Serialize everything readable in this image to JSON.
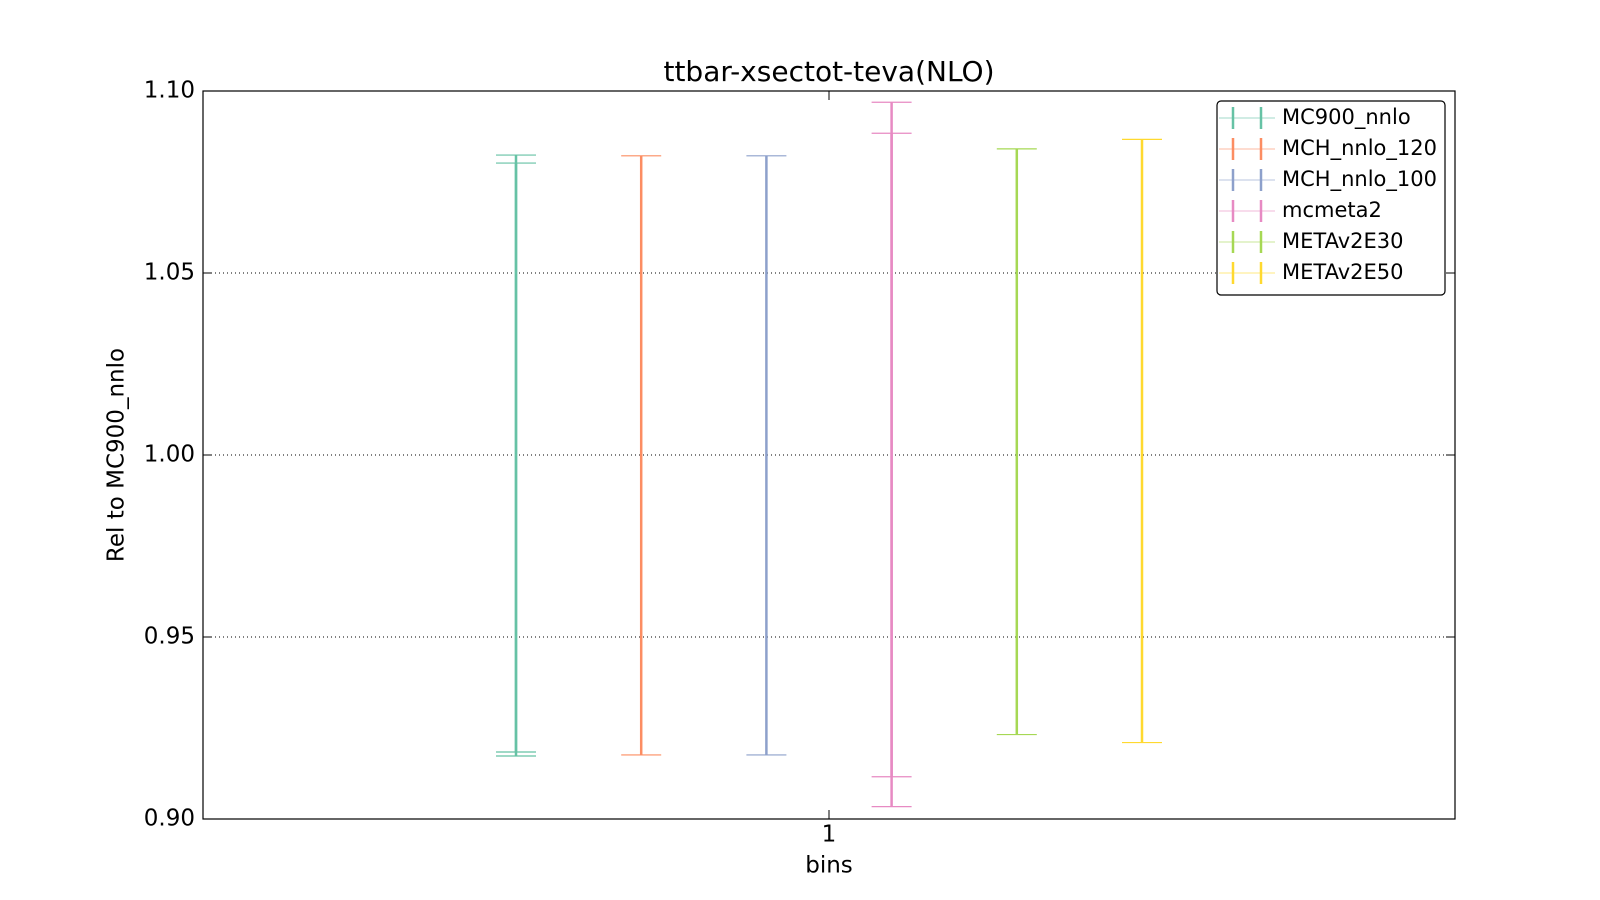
{
  "chart_data": {
    "type": "errorbar",
    "title": "ttbar-xsectot-teva(NLO)",
    "x_label": "bins",
    "y_label": "Rel to MC900_nnlo",
    "xlim": [
      0.5,
      1.5
    ],
    "xticks": [
      1
    ],
    "ylim": [
      0.9,
      1.1
    ],
    "yticks": [
      {
        "value": 0.9,
        "label": "0.90"
      },
      0.95,
      {
        "value": 1.0,
        "label": "1.00"
      },
      1.05,
      {
        "value": 1.1,
        "label": "1.10"
      }
    ],
    "grid": true,
    "legend": "upper right",
    "series": [
      {
        "name": "MC900_nnlo",
        "color": "#66c2a5",
        "x": [
          0.75
        ],
        "errorbars": [
          [
            0.9173,
            1.0824
          ],
          [
            0.9184,
            1.0802
          ]
        ]
      },
      {
        "name": "MCH_nnlo_120",
        "color": "#fc8d62",
        "x": [
          0.85
        ],
        "errorbars": [
          [
            0.9176,
            1.0822
          ]
        ]
      },
      {
        "name": "MCH_nnlo_100",
        "color": "#8da0cb",
        "x": [
          0.95
        ],
        "errorbars": [
          [
            0.9176,
            1.0822
          ]
        ]
      },
      {
        "name": "mcmeta2",
        "color": "#e78ac3",
        "x": [
          1.05
        ],
        "errorbars": [
          [
            0.9034,
            1.0969
          ],
          [
            0.9116,
            1.0884
          ]
        ]
      },
      {
        "name": "METAv2E30",
        "color": "#a6d854",
        "x": [
          1.15
        ],
        "errorbars": [
          [
            0.9232,
            1.0841
          ]
        ]
      },
      {
        "name": "METAv2E50",
        "color": "#ffd92f",
        "x": [
          1.25
        ],
        "errorbars": [
          [
            0.921,
            1.0867
          ]
        ]
      }
    ]
  }
}
